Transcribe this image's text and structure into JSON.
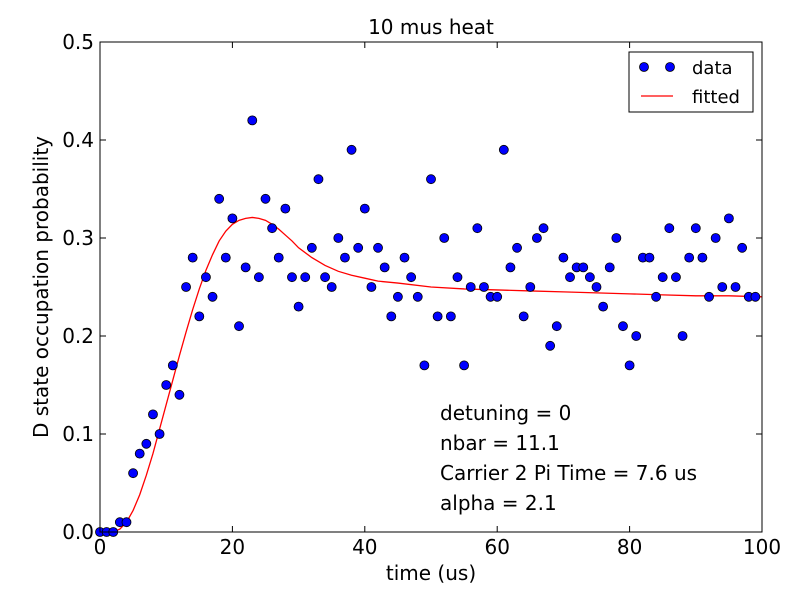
{
  "chart_data": {
    "type": "scatter",
    "title": "10 mus heat",
    "xlabel": "time (us)",
    "ylabel": "D state occupation probability",
    "xlim": [
      0,
      100
    ],
    "ylim": [
      0,
      0.5
    ],
    "xticks": [
      "0",
      "20",
      "40",
      "60",
      "80",
      "100"
    ],
    "yticks": [
      "0.0",
      "0.1",
      "0.2",
      "0.3",
      "0.4",
      "0.5"
    ],
    "grid": false,
    "legend_position": "top-right",
    "series": [
      {
        "name": "data",
        "kind": "scatter",
        "color": "#0000ff",
        "x": [
          0,
          1,
          2,
          3,
          4,
          5,
          6,
          7,
          8,
          9,
          10,
          11,
          12,
          13,
          14,
          15,
          16,
          17,
          18,
          19,
          20,
          21,
          22,
          23,
          24,
          25,
          26,
          27,
          28,
          29,
          30,
          31,
          32,
          33,
          34,
          35,
          36,
          37,
          38,
          39,
          40,
          41,
          42,
          43,
          44,
          45,
          46,
          47,
          48,
          49,
          50,
          51,
          52,
          53,
          54,
          55,
          56,
          57,
          58,
          59,
          60,
          61,
          62,
          63,
          64,
          65,
          66,
          67,
          68,
          69,
          70,
          71,
          72,
          73,
          74,
          75,
          76,
          77,
          78,
          79,
          80,
          81,
          82,
          83,
          84,
          85,
          86,
          87,
          88,
          89,
          90,
          91,
          92,
          93,
          94,
          95,
          96,
          97,
          98,
          99
        ],
        "y": [
          0.0,
          0.0,
          0.0,
          0.01,
          0.01,
          0.06,
          0.08,
          0.09,
          0.12,
          0.1,
          0.15,
          0.17,
          0.14,
          0.25,
          0.28,
          0.22,
          0.26,
          0.24,
          0.34,
          0.28,
          0.32,
          0.21,
          0.27,
          0.42,
          0.26,
          0.34,
          0.31,
          0.28,
          0.33,
          0.26,
          0.23,
          0.26,
          0.29,
          0.36,
          0.26,
          0.25,
          0.3,
          0.28,
          0.39,
          0.29,
          0.33,
          0.25,
          0.29,
          0.27,
          0.22,
          0.24,
          0.28,
          0.26,
          0.24,
          0.17,
          0.36,
          0.22,
          0.3,
          0.22,
          0.26,
          0.17,
          0.25,
          0.31,
          0.25,
          0.24,
          0.24,
          0.39,
          0.27,
          0.29,
          0.22,
          0.25,
          0.3,
          0.31,
          0.19,
          0.21,
          0.28,
          0.26,
          0.27,
          0.27,
          0.26,
          0.25,
          0.23,
          0.27,
          0.3,
          0.21,
          0.17,
          0.2,
          0.28,
          0.28,
          0.24,
          0.26,
          0.31,
          0.26,
          0.2,
          0.28,
          0.31,
          0.28,
          0.24,
          0.3,
          0.25,
          0.32,
          0.25,
          0.29,
          0.24,
          0.24
        ]
      },
      {
        "name": "fitted",
        "kind": "line",
        "color": "#ff0000",
        "x": [
          0,
          2,
          3,
          4,
          5,
          6,
          7,
          8,
          9,
          10,
          11,
          12,
          13,
          14,
          15,
          16,
          17,
          18,
          19,
          20,
          21,
          22,
          23,
          24,
          25,
          26,
          27,
          28,
          29,
          30,
          32,
          34,
          36,
          38,
          40,
          42,
          45,
          50,
          55,
          60,
          65,
          70,
          75,
          80,
          85,
          90,
          95,
          100
        ],
        "y": [
          0.0,
          0.0,
          0.003,
          0.01,
          0.022,
          0.038,
          0.058,
          0.08,
          0.105,
          0.13,
          0.155,
          0.18,
          0.204,
          0.227,
          0.248,
          0.267,
          0.283,
          0.297,
          0.307,
          0.314,
          0.318,
          0.32,
          0.321,
          0.32,
          0.318,
          0.314,
          0.309,
          0.303,
          0.297,
          0.29,
          0.28,
          0.272,
          0.266,
          0.262,
          0.259,
          0.256,
          0.254,
          0.25,
          0.248,
          0.247,
          0.246,
          0.245,
          0.244,
          0.243,
          0.242,
          0.241,
          0.241,
          0.24
        ]
      }
    ],
    "annotations": [
      "detuning = 0",
      "nbar = 11.1",
      "Carrier 2 Pi Time = 7.6 us",
      "alpha = 2.1"
    ]
  }
}
